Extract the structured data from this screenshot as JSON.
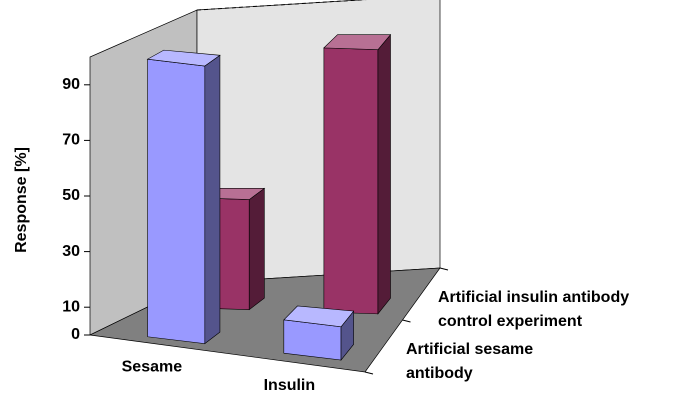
{
  "chart_data": {
    "type": "bar3d",
    "y_label": "Response [%]",
    "categories": [
      "Sesame",
      "Insulin"
    ],
    "series": [
      {
        "name": "Artificial sesame antibody",
        "color": "#9999ff",
        "values": [
          100,
          12
        ]
      },
      {
        "name": "Artificial insulin antibody control experiment",
        "color": "#993366",
        "values": [
          40,
          96
        ]
      }
    ],
    "ylim": [
      0,
      100
    ],
    "yticks": [
      0,
      10,
      30,
      50,
      70,
      90
    ]
  }
}
